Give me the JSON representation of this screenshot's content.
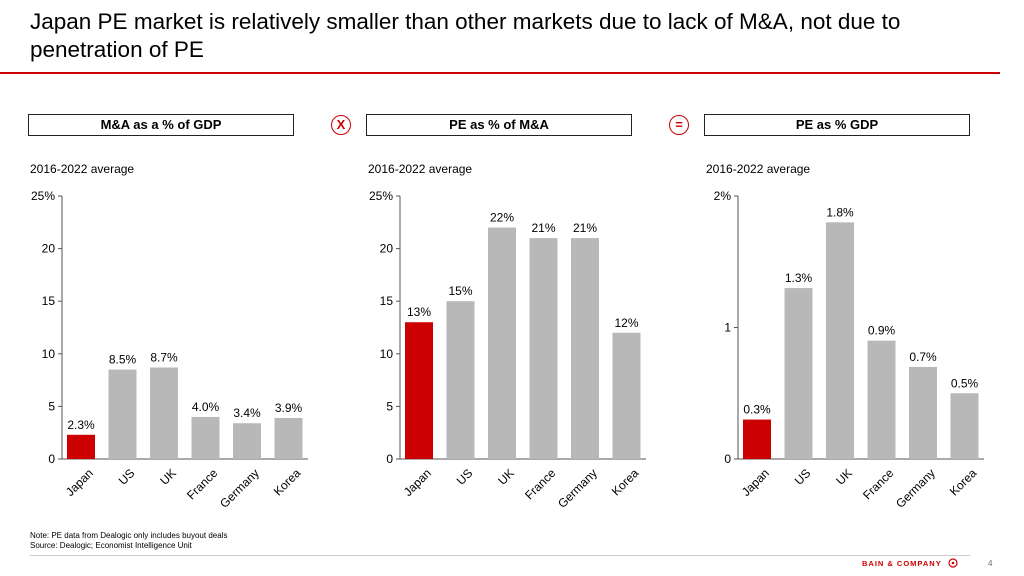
{
  "page": {
    "title": "Japan PE market is relatively smaller than other markets due to lack of M&A, not due to penetration of PE",
    "operators": {
      "times": "X",
      "equals": "="
    },
    "note": "Note: PE data from Dealogic only includes buyout deals",
    "source": "Source: Dealogic; Economist Intelligence Unit",
    "brand": "BAIN & COMPANY",
    "page_number": "4"
  },
  "colors": {
    "highlight": "#cc0000",
    "bar": "#b8b8b8",
    "accent": "#cc0000"
  },
  "chart_data": [
    {
      "type": "bar",
      "header": "M&A as a % of GDP",
      "subtitle": "2016-2022 average",
      "categories": [
        "Japan",
        "US",
        "UK",
        "France",
        "Germany",
        "Korea"
      ],
      "values": [
        2.3,
        8.5,
        8.7,
        4.0,
        3.4,
        3.9
      ],
      "value_labels": [
        "2.3%",
        "8.5%",
        "8.7%",
        "4.0%",
        "3.4%",
        "3.9%"
      ],
      "ylim": [
        0,
        25
      ],
      "yticks": [
        "0",
        "5",
        "10",
        "15",
        "20",
        "25%"
      ],
      "highlight": "Japan"
    },
    {
      "type": "bar",
      "header": "PE as % of M&A",
      "subtitle": "2016-2022 average",
      "categories": [
        "Japan",
        "US",
        "UK",
        "France",
        "Germany",
        "Korea"
      ],
      "values": [
        13,
        15,
        22,
        21,
        21,
        12
      ],
      "value_labels": [
        "13%",
        "15%",
        "22%",
        "21%",
        "21%",
        "12%"
      ],
      "ylim": [
        0,
        25
      ],
      "yticks": [
        "0",
        "5",
        "10",
        "15",
        "20",
        "25%"
      ],
      "highlight": "Japan"
    },
    {
      "type": "bar",
      "header": "PE as % GDP",
      "subtitle": "2016-2022 average",
      "categories": [
        "Japan",
        "US",
        "UK",
        "France",
        "Germany",
        "Korea"
      ],
      "values": [
        0.3,
        1.3,
        1.8,
        0.9,
        0.7,
        0.5
      ],
      "value_labels": [
        "0.3%",
        "1.3%",
        "1.8%",
        "0.9%",
        "0.7%",
        "0.5%"
      ],
      "ylim": [
        0,
        2
      ],
      "yticks": [
        "0",
        "1",
        "2%"
      ],
      "highlight": "Japan"
    }
  ]
}
